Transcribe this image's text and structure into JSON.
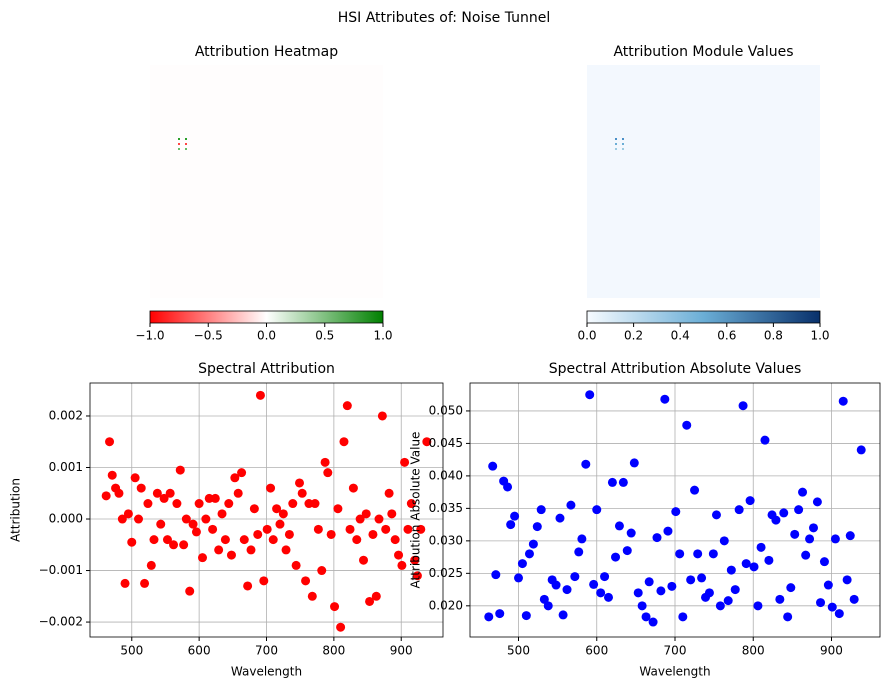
{
  "figure_title": "HSI Attributes of: Noise Tunnel",
  "chart_data": [
    {
      "type": "heatmap",
      "title": "Attribution Heatmap",
      "colorbar": {
        "lim": [
          -1,
          1
        ],
        "colors": [
          "#ff0000",
          "#ffffff",
          "#008000"
        ],
        "ticks": [
          {
            "value": -1,
            "label": "−1.0"
          },
          {
            "value": -0.5,
            "label": "−0.5"
          },
          {
            "value": 0,
            "label": "0.0"
          },
          {
            "value": 0.5,
            "label": "0.5"
          },
          {
            "value": 1,
            "label": "1.0"
          }
        ]
      }
    },
    {
      "type": "heatmap",
      "title": "Attribution Module Values",
      "colorbar": {
        "lim": [
          0,
          1
        ],
        "colors": [
          "#f7fbff",
          "#6baed6",
          "#08306b"
        ],
        "ticks": [
          {
            "value": 0,
            "label": "0.0"
          },
          {
            "value": 0.2,
            "label": "0.2"
          },
          {
            "value": 0.4,
            "label": "0.4"
          },
          {
            "value": 0.6,
            "label": "0.6"
          },
          {
            "value": 0.8,
            "label": "0.8"
          },
          {
            "value": 1,
            "label": "1.0"
          }
        ]
      }
    },
    {
      "type": "scatter",
      "title": "Spectral Attribution",
      "x_label": "Wavelength",
      "y_label": "Attribution",
      "color": "#ff0000",
      "grid": true,
      "xlim": [
        438,
        962
      ],
      "xticks": [
        500,
        600,
        700,
        800,
        900
      ],
      "ylim": [
        -0.00229,
        0.00264
      ],
      "yticks": [
        {
          "value": -0.002,
          "label": "−0.002"
        },
        {
          "value": -0.001,
          "label": "−0.001"
        },
        {
          "value": 0,
          "label": "0.000"
        },
        {
          "value": 0.001,
          "label": "0.001"
        },
        {
          "value": 0.002,
          "label": "0.002"
        }
      ],
      "x": [
        462,
        467,
        471,
        476,
        481,
        486,
        490,
        495,
        500,
        505,
        510,
        514,
        519,
        524,
        529,
        533,
        538,
        543,
        548,
        553,
        557,
        562,
        567,
        572,
        577,
        581,
        586,
        591,
        596,
        600,
        605,
        610,
        615,
        620,
        624,
        629,
        634,
        639,
        644,
        648,
        653,
        658,
        663,
        667,
        672,
        677,
        682,
        687,
        691,
        696,
        701,
        706,
        710,
        715,
        720,
        725,
        729,
        734,
        739,
        744,
        749,
        753,
        758,
        763,
        768,
        772,
        777,
        782,
        787,
        791,
        796,
        801,
        806,
        810,
        815,
        820,
        824,
        829,
        834,
        839,
        844,
        848,
        853,
        858,
        863,
        867,
        872,
        877,
        882,
        886,
        891,
        896,
        901,
        905,
        910,
        915,
        920,
        924,
        929,
        938
      ],
      "values": [
        0.00045,
        0.0015,
        0.00085,
        0.0006,
        0.0005,
        0.0,
        -0.00125,
        0.0001,
        -0.00045,
        0.0008,
        0.0,
        0.0006,
        -0.00125,
        0.0003,
        -0.0009,
        -0.0004,
        0.0005,
        -0.0001,
        0.0004,
        -0.0004,
        0.0005,
        -0.0005,
        0.0003,
        0.00095,
        -0.0005,
        0.0,
        -0.0014,
        -0.0001,
        -0.00025,
        0.0003,
        -0.00075,
        0.0,
        0.0004,
        -0.0002,
        0.0004,
        -0.0006,
        0.0001,
        -0.0004,
        0.0003,
        -0.0007,
        0.0008,
        0.0005,
        0.0009,
        -0.0004,
        -0.0013,
        -0.0006,
        0.0002,
        -0.0003,
        0.0024,
        -0.0012,
        -0.0002,
        0.0006,
        -0.0004,
        0.0002,
        -0.0001,
        0.0001,
        -0.0006,
        -0.0003,
        0.0003,
        -0.0009,
        0.0007,
        0.0005,
        -0.0012,
        0.0003,
        -0.0015,
        0.0003,
        -0.0002,
        -0.001,
        0.0011,
        0.0009,
        -0.0003,
        -0.0017,
        0.0002,
        -0.0021,
        0.0015,
        0.0022,
        -0.0002,
        0.0006,
        -0.0004,
        0.0,
        -0.0008,
        0.0001,
        -0.0016,
        -0.0003,
        -0.0015,
        0.0,
        0.002,
        -0.0002,
        0.0005,
        0.0001,
        -0.0004,
        -0.0007,
        -0.0009,
        0.0011,
        -0.0002,
        0.0003,
        -0.0008,
        -0.0011,
        -0.0002,
        0.0015
      ]
    },
    {
      "type": "scatter",
      "title": "Spectral Attribution Absolute Values",
      "x_label": "Wavelength",
      "y_label": "Attribution Absolute Value",
      "color": "#0000ff",
      "grid": true,
      "xlim": [
        438,
        962
      ],
      "xticks": [
        500,
        600,
        700,
        800,
        900
      ],
      "ylim": [
        0.0152,
        0.0543
      ],
      "yticks": [
        {
          "value": 0.02,
          "label": "0.020"
        },
        {
          "value": 0.025,
          "label": "0.025"
        },
        {
          "value": 0.03,
          "label": "0.030"
        },
        {
          "value": 0.035,
          "label": "0.035"
        },
        {
          "value": 0.04,
          "label": "0.040"
        },
        {
          "value": 0.045,
          "label": "0.045"
        },
        {
          "value": 0.05,
          "label": "0.050"
        }
      ],
      "x": [
        462,
        467,
        471,
        476,
        481,
        486,
        490,
        495,
        500,
        505,
        510,
        514,
        519,
        524,
        529,
        533,
        538,
        543,
        548,
        553,
        557,
        562,
        567,
        572,
        577,
        581,
        586,
        591,
        596,
        600,
        605,
        610,
        615,
        620,
        624,
        629,
        634,
        639,
        644,
        648,
        653,
        658,
        663,
        667,
        672,
        677,
        682,
        687,
        691,
        696,
        701,
        706,
        710,
        715,
        720,
        725,
        729,
        734,
        739,
        744,
        749,
        753,
        758,
        763,
        768,
        772,
        777,
        782,
        787,
        791,
        796,
        801,
        806,
        810,
        815,
        820,
        824,
        829,
        834,
        839,
        844,
        848,
        853,
        858,
        863,
        867,
        872,
        877,
        882,
        886,
        891,
        896,
        901,
        905,
        910,
        915,
        920,
        924,
        929,
        938
      ],
      "values": [
        0.0183,
        0.0415,
        0.0248,
        0.0188,
        0.0392,
        0.0383,
        0.0325,
        0.0338,
        0.0243,
        0.0265,
        0.0185,
        0.028,
        0.0295,
        0.0322,
        0.0348,
        0.021,
        0.02,
        0.024,
        0.0232,
        0.0335,
        0.0186,
        0.0225,
        0.0355,
        0.0245,
        0.0283,
        0.0303,
        0.0418,
        0.0525,
        0.0233,
        0.0348,
        0.022,
        0.0245,
        0.0213,
        0.039,
        0.0275,
        0.0323,
        0.039,
        0.0285,
        0.0312,
        0.042,
        0.022,
        0.02,
        0.0183,
        0.0237,
        0.0175,
        0.0305,
        0.0223,
        0.0518,
        0.0315,
        0.023,
        0.0345,
        0.028,
        0.0183,
        0.0478,
        0.024,
        0.0378,
        0.028,
        0.0243,
        0.0213,
        0.022,
        0.028,
        0.034,
        0.02,
        0.03,
        0.0208,
        0.0255,
        0.0225,
        0.0348,
        0.0508,
        0.0265,
        0.0362,
        0.026,
        0.02,
        0.029,
        0.0455,
        0.027,
        0.034,
        0.0332,
        0.021,
        0.0343,
        0.0183,
        0.0228,
        0.031,
        0.0348,
        0.0375,
        0.0278,
        0.0303,
        0.032,
        0.036,
        0.0205,
        0.0268,
        0.0232,
        0.0198,
        0.0303,
        0.0188,
        0.0515,
        0.024,
        0.0308,
        0.021,
        0.044
      ]
    }
  ]
}
